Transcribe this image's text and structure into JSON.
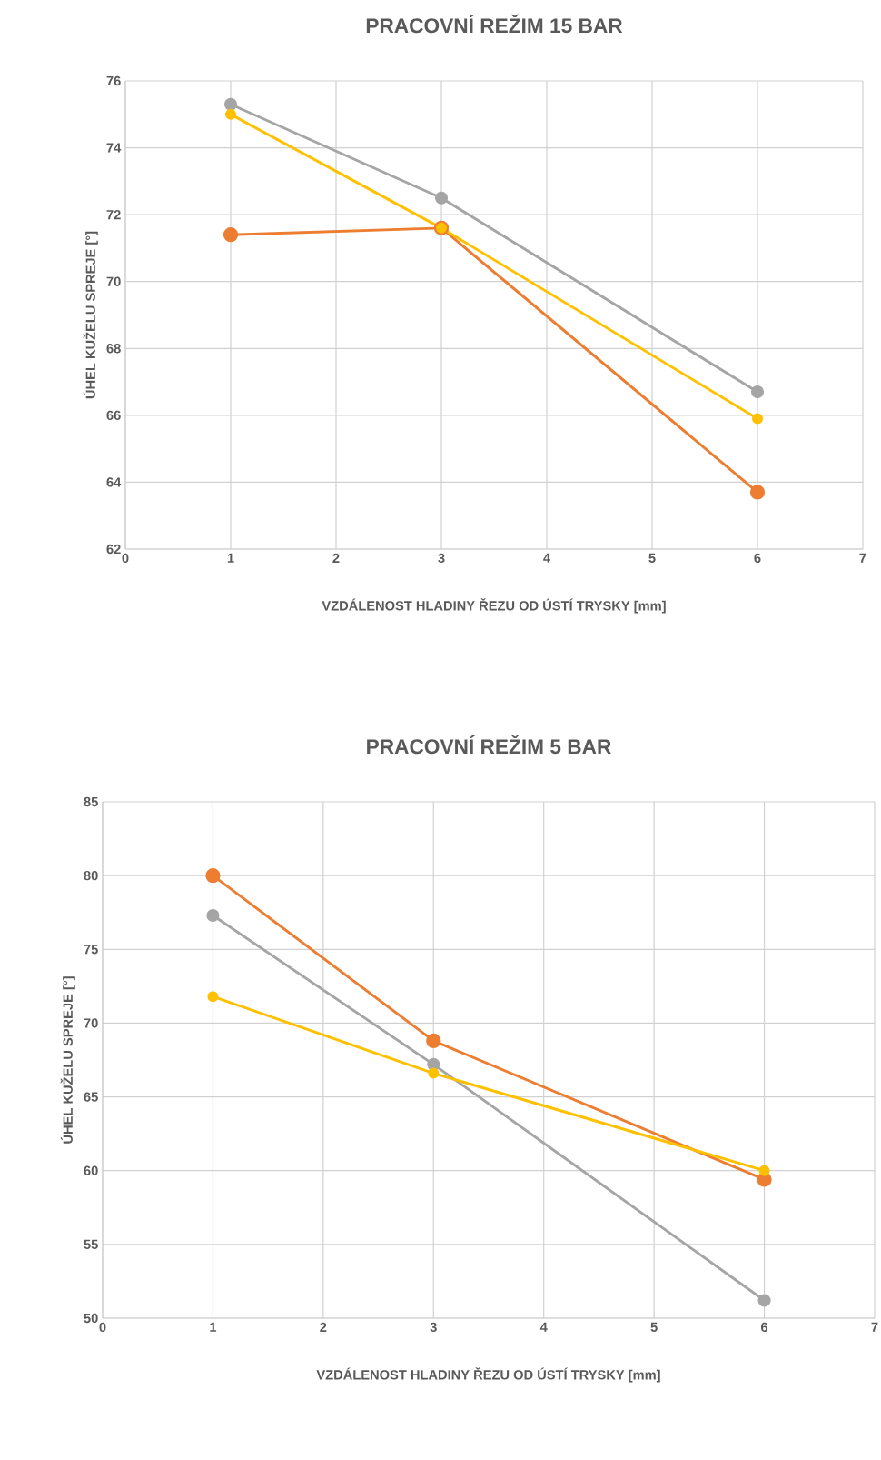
{
  "chart_data": [
    {
      "type": "line",
      "title": "PRACOVNÍ REŽIM 15 BAR",
      "xlabel": "VZDÁLENOST HLADINY ŘEZU OD ÚSTÍ TRYSKY [mm]",
      "ylabel": "ÚHEL KUŽELU SPREJE [°]",
      "x": [
        1,
        3,
        6
      ],
      "series": [
        {
          "color": "#ed7d31",
          "values": [
            71.4,
            71.6,
            63.7
          ]
        },
        {
          "color": "#a5a5a5",
          "values": [
            75.3,
            72.5,
            66.7
          ]
        },
        {
          "color": "#ffc000",
          "values": [
            75.0,
            71.6,
            65.9
          ]
        }
      ],
      "xlim": [
        0,
        7
      ],
      "xticks": [
        0,
        1,
        2,
        3,
        4,
        5,
        6,
        7
      ],
      "ylim": [
        62,
        76
      ],
      "yticks": [
        62,
        64,
        66,
        68,
        70,
        72,
        74,
        76
      ],
      "grid": true,
      "marker": "circle",
      "line_style": "solid"
    },
    {
      "type": "line",
      "title": "PRACOVNÍ REŽIM 5 BAR",
      "xlabel": "VZDÁLENOST HLADINY ŘEZU OD ÚSTÍ TRYSKY [mm]",
      "ylabel": "ÚHEL KUŽELU SPREJE [°]",
      "x": [
        1,
        3,
        6
      ],
      "series": [
        {
          "color": "#ed7d31",
          "values": [
            80.0,
            68.8,
            59.4
          ]
        },
        {
          "color": "#a5a5a5",
          "values": [
            77.3,
            67.2,
            51.2
          ]
        },
        {
          "color": "#ffc000",
          "values": [
            71.8,
            66.6,
            60.0
          ]
        }
      ],
      "xlim": [
        0,
        7
      ],
      "xticks": [
        0,
        1,
        2,
        3,
        4,
        5,
        6,
        7
      ],
      "ylim": [
        50,
        85
      ],
      "yticks": [
        50,
        55,
        60,
        65,
        70,
        75,
        80,
        85
      ],
      "grid": true,
      "marker": "circle",
      "line_style": "solid"
    }
  ]
}
